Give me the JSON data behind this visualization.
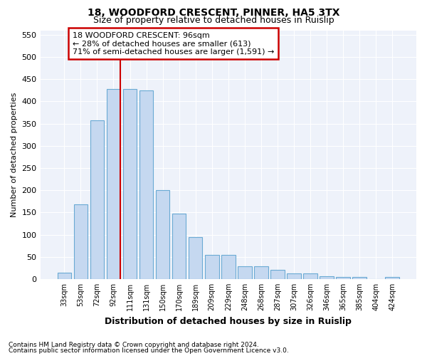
{
  "title1": "18, WOODFORD CRESCENT, PINNER, HA5 3TX",
  "title2": "Size of property relative to detached houses in Ruislip",
  "xlabel": "Distribution of detached houses by size in Ruislip",
  "ylabel": "Number of detached properties",
  "categories": [
    "33sqm",
    "53sqm",
    "72sqm",
    "92sqm",
    "111sqm",
    "131sqm",
    "150sqm",
    "170sqm",
    "189sqm",
    "209sqm",
    "229sqm",
    "248sqm",
    "268sqm",
    "287sqm",
    "307sqm",
    "326sqm",
    "346sqm",
    "365sqm",
    "385sqm",
    "404sqm",
    "424sqm"
  ],
  "values": [
    15,
    168,
    358,
    428,
    428,
    424,
    200,
    148,
    95,
    55,
    55,
    28,
    28,
    20,
    13,
    13,
    7,
    5,
    5,
    0,
    5
  ],
  "bar_color": "#c5d8f0",
  "bar_edge_color": "#6aaad4",
  "vline_x_idx": 3,
  "vline_color": "#cc0000",
  "annotation_text": "18 WOODFORD CRESCENT: 96sqm\n← 28% of detached houses are smaller (613)\n71% of semi-detached houses are larger (1,591) →",
  "annotation_box_color": "#ffffff",
  "annotation_box_edge_color": "#cc0000",
  "ylim": [
    0,
    560
  ],
  "yticks": [
    0,
    50,
    100,
    150,
    200,
    250,
    300,
    350,
    400,
    450,
    500,
    550
  ],
  "footnote1": "Contains HM Land Registry data © Crown copyright and database right 2024.",
  "footnote2": "Contains public sector information licensed under the Open Government Licence v3.0.",
  "plot_background": "#eef2fa"
}
